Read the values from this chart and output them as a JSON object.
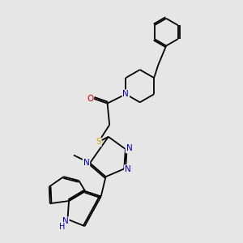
{
  "background_color": "#e6e6e6",
  "atom_colors": {
    "C": "#000000",
    "N": "#0000cc",
    "O": "#dd0000",
    "S": "#ccaa00",
    "H": "#0000cc"
  },
  "figsize": [
    3.0,
    3.0
  ],
  "dpi": 100,
  "bond_lw": 1.3,
  "font_size": 7.5
}
